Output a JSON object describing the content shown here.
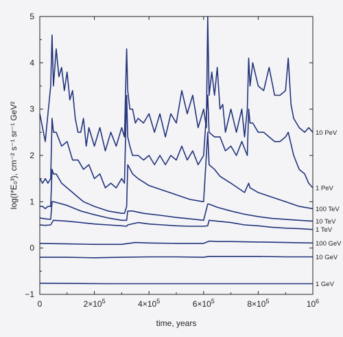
{
  "chart_data": {
    "type": "line",
    "title": "",
    "xlabel": "time, years",
    "ylabel": "log(I*E₀³), cm⁻² s⁻¹ sr⁻¹ GeV²",
    "xlim": [
      0,
      1000000
    ],
    "ylim": [
      -1,
      5
    ],
    "xticks": [
      {
        "value": 0,
        "label": "0",
        "base": "",
        "exp": ""
      },
      {
        "value": 200000,
        "label": "",
        "base": "2×10",
        "exp": "5"
      },
      {
        "value": 400000,
        "label": "",
        "base": "4×10",
        "exp": "5"
      },
      {
        "value": 600000,
        "label": "",
        "base": "6×10",
        "exp": "5"
      },
      {
        "value": 800000,
        "label": "",
        "base": "8×10",
        "exp": "5"
      },
      {
        "value": 1000000,
        "label": "",
        "base": "10",
        "exp": "6"
      }
    ],
    "yticks": [
      {
        "value": -1,
        "label": "−1"
      },
      {
        "value": 0,
        "label": "0"
      },
      {
        "value": 1,
        "label": "1"
      },
      {
        "value": 2,
        "label": "2"
      },
      {
        "value": 3,
        "label": "3"
      },
      {
        "value": 4,
        "label": "4"
      },
      {
        "value": 5,
        "label": "5"
      }
    ],
    "grid": false,
    "legend": "labels at right end of each line",
    "line_color": "#22337a",
    "series": [
      {
        "name": "10 PeV",
        "x": [
          0,
          10000,
          20000,
          30000,
          40000,
          45000,
          50000,
          60000,
          70000,
          80000,
          90000,
          100000,
          110000,
          120000,
          130000,
          140000,
          150000,
          160000,
          170000,
          180000,
          200000,
          220000,
          240000,
          260000,
          280000,
          300000,
          310000,
          318000,
          322000,
          330000,
          340000,
          350000,
          360000,
          380000,
          400000,
          420000,
          440000,
          460000,
          480000,
          500000,
          520000,
          540000,
          560000,
          580000,
          600000,
          610000,
          615000,
          620000,
          630000,
          640000,
          650000,
          660000,
          670000,
          680000,
          700000,
          720000,
          740000,
          750000,
          760000,
          765000,
          770000,
          780000,
          800000,
          820000,
          840000,
          860000,
          880000,
          900000,
          910000,
          920000,
          930000,
          950000,
          970000,
          985000,
          1000000
        ],
        "y": [
          2.9,
          2.6,
          2.3,
          2.9,
          3.5,
          4.6,
          3.5,
          4.3,
          3.7,
          3.9,
          3.4,
          3.8,
          3.2,
          3.4,
          2.8,
          2.5,
          2.5,
          2.8,
          2.2,
          2.6,
          2.2,
          2.6,
          2.1,
          2.5,
          2.2,
          2.6,
          2.4,
          4.3,
          3.4,
          3.0,
          3.0,
          2.7,
          2.8,
          2.7,
          2.9,
          2.5,
          2.9,
          2.4,
          2.9,
          2.7,
          3.4,
          2.9,
          3.3,
          2.6,
          3.0,
          2.6,
          5.0,
          3.3,
          3.8,
          3.3,
          3.9,
          3.0,
          3.1,
          2.5,
          3.0,
          2.5,
          3.0,
          2.4,
          3.0,
          4.1,
          3.5,
          4.0,
          3.5,
          3.4,
          3.9,
          3.3,
          3.3,
          3.4,
          4.1,
          3.1,
          2.8,
          2.6,
          2.5,
          2.6,
          2.5
        ]
      },
      {
        "name": "1 PeV",
        "x": [
          0,
          10000,
          20000,
          30000,
          40000,
          45000,
          50000,
          60000,
          80000,
          100000,
          120000,
          140000,
          160000,
          180000,
          200000,
          220000,
          240000,
          260000,
          280000,
          300000,
          310000,
          318000,
          322000,
          330000,
          340000,
          360000,
          380000,
          400000,
          420000,
          440000,
          460000,
          480000,
          500000,
          520000,
          540000,
          560000,
          580000,
          600000,
          615000,
          620000,
          640000,
          660000,
          680000,
          700000,
          720000,
          740000,
          760000,
          765000,
          770000,
          780000,
          800000,
          820000,
          840000,
          860000,
          880000,
          900000,
          910000,
          930000,
          950000,
          970000,
          985000,
          1000000
        ],
        "y": [
          1.5,
          1.4,
          1.5,
          1.4,
          1.5,
          2.8,
          2.5,
          2.5,
          2.2,
          2.3,
          1.9,
          1.9,
          1.7,
          1.8,
          1.5,
          1.6,
          1.3,
          1.4,
          1.3,
          1.5,
          1.4,
          3.3,
          2.4,
          2.2,
          2.0,
          2.0,
          1.9,
          2.0,
          1.8,
          2.0,
          1.8,
          2.0,
          1.9,
          2.2,
          1.9,
          2.1,
          1.8,
          2.0,
          3.3,
          2.5,
          2.4,
          2.4,
          2.1,
          2.2,
          2.0,
          2.3,
          2.0,
          3.0,
          2.7,
          2.7,
          2.5,
          2.5,
          2.4,
          2.3,
          2.3,
          2.4,
          2.5,
          2.0,
          1.7,
          1.6,
          1.4,
          1.3
        ]
      },
      {
        "name": "100 TeV",
        "x": [
          0,
          10000,
          20000,
          30000,
          40000,
          45000,
          50000,
          60000,
          80000,
          100000,
          120000,
          140000,
          160000,
          180000,
          200000,
          250000,
          300000,
          310000,
          318000,
          322000,
          340000,
          360000,
          400000,
          450000,
          500000,
          550000,
          600000,
          615000,
          620000,
          640000,
          660000,
          700000,
          750000,
          765000,
          770000,
          800000,
          850000,
          900000,
          950000,
          1000000
        ],
        "y": [
          0.9,
          0.9,
          0.85,
          0.9,
          0.9,
          1.7,
          1.6,
          1.6,
          1.4,
          1.3,
          1.2,
          1.1,
          1.0,
          0.95,
          0.9,
          0.8,
          0.75,
          0.75,
          0.9,
          1.8,
          1.6,
          1.5,
          1.35,
          1.25,
          1.15,
          1.05,
          1.0,
          2.5,
          1.8,
          1.7,
          1.55,
          1.4,
          1.2,
          1.4,
          1.3,
          1.2,
          1.1,
          1.0,
          0.9,
          0.85
        ]
      },
      {
        "name": "10 TeV",
        "x": [
          0,
          20000,
          40000,
          45000,
          50000,
          70000,
          100000,
          150000,
          200000,
          250000,
          300000,
          318000,
          322000,
          340000,
          380000,
          450000,
          500000,
          550000,
          600000,
          615000,
          620000,
          650000,
          700000,
          750000,
          800000,
          850000,
          900000,
          950000,
          1000000
        ],
        "y": [
          0.65,
          0.63,
          0.62,
          1.0,
          1.0,
          0.97,
          0.92,
          0.8,
          0.72,
          0.65,
          0.6,
          0.6,
          0.8,
          0.8,
          0.75,
          0.7,
          0.66,
          0.63,
          0.6,
          0.95,
          0.95,
          0.88,
          0.8,
          0.73,
          0.68,
          0.64,
          0.62,
          0.6,
          0.58
        ]
      },
      {
        "name": "1 TeV",
        "x": [
          0,
          20000,
          40000,
          45000,
          50000,
          100000,
          150000,
          200000,
          250000,
          300000,
          318000,
          322000,
          360000,
          400000,
          450000,
          500000,
          550000,
          600000,
          615000,
          620000,
          650000,
          700000,
          750000,
          800000,
          850000,
          900000,
          950000,
          1000000
        ],
        "y": [
          0.5,
          0.49,
          0.5,
          0.55,
          0.6,
          0.58,
          0.55,
          0.52,
          0.5,
          0.48,
          0.47,
          0.5,
          0.55,
          0.52,
          0.5,
          0.48,
          0.47,
          0.47,
          0.48,
          0.6,
          0.58,
          0.55,
          0.5,
          0.48,
          0.45,
          0.43,
          0.42,
          0.4
        ]
      },
      {
        "name": "100 GeV",
        "x": [
          0,
          100000,
          200000,
          300000,
          350000,
          400000,
          500000,
          600000,
          620000,
          650000,
          700000,
          800000,
          900000,
          1000000
        ],
        "y": [
          0.1,
          0.09,
          0.08,
          0.08,
          0.12,
          0.11,
          0.1,
          0.1,
          0.15,
          0.14,
          0.14,
          0.13,
          0.12,
          0.11
        ]
      },
      {
        "name": "10 GeV",
        "x": [
          0,
          100000,
          200000,
          300000,
          400000,
          500000,
          600000,
          620000,
          700000,
          800000,
          900000,
          1000000
        ],
        "y": [
          -0.2,
          -0.2,
          -0.21,
          -0.2,
          -0.19,
          -0.19,
          -0.2,
          -0.18,
          -0.18,
          -0.18,
          -0.19,
          -0.19
        ]
      },
      {
        "name": "1 GeV",
        "x": [
          0,
          250000,
          500000,
          750000,
          1000000
        ],
        "y": [
          -0.76,
          -0.77,
          -0.77,
          -0.77,
          -0.77
        ]
      }
    ]
  }
}
